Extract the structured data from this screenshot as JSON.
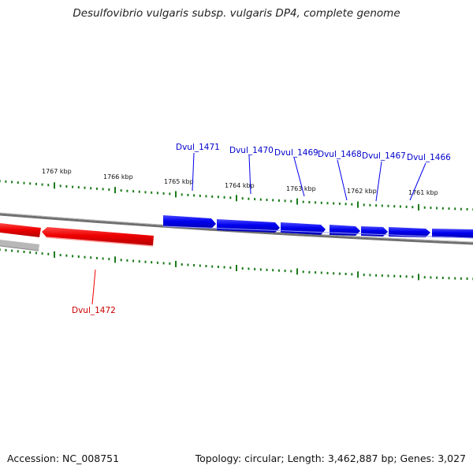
{
  "title": "Desulfovibrio vulgaris subsp. vulgaris DP4, complete genome",
  "footer": {
    "accession": "Accession: NC_008751",
    "topology": "Topology: circular; Length: 3,462,887 bp; Genes: 3,027"
  },
  "colors": {
    "forward_gene": "#0000ee",
    "reverse_gene": "#ee0000",
    "tick": "#1a7a1a",
    "backbone": "#808080"
  },
  "scale": {
    "ticks": [
      "1767 kbp",
      "1766 kbp",
      "1765 kbp",
      "1764 kbp",
      "1763 kbp",
      "1762 kbp",
      "1761 kbp"
    ]
  },
  "genes": {
    "forward": [
      "Dvul_1471",
      "Dvul_1470",
      "Dvul_1469",
      "Dvul_1468",
      "Dvul_1467",
      "Dvul_1466"
    ],
    "reverse": [
      "Dvul_1472"
    ]
  }
}
